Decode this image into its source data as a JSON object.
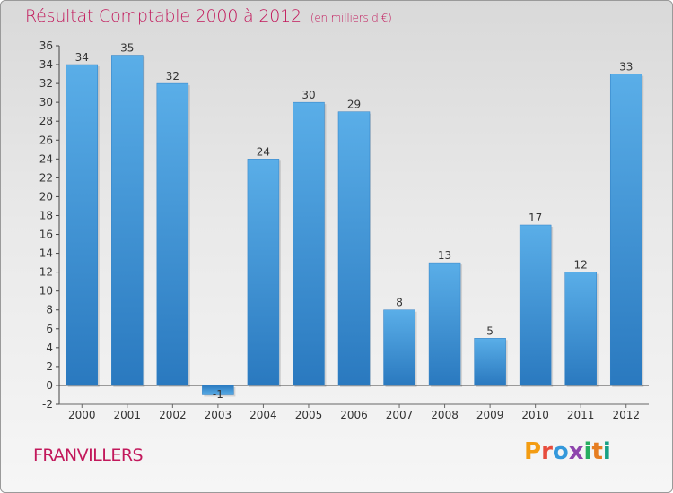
{
  "header": {
    "title": "Résultat Comptable 2000 à 2012",
    "subtitle": "(en milliers d'€)"
  },
  "commune": "FRANVILLERS",
  "logo": {
    "letters": [
      "P",
      "r",
      "o",
      "x",
      "i",
      "t",
      "i"
    ],
    "colors": [
      "#f39c12",
      "#e74c3c",
      "#3498db",
      "#8e44ad",
      "#27ae60",
      "#e67e22",
      "#16a085"
    ]
  },
  "chart_data": {
    "type": "bar",
    "title": "Résultat Comptable 2000 à 2012",
    "subtitle": "(en milliers d'€)",
    "categories": [
      "2000",
      "2001",
      "2002",
      "2003",
      "2004",
      "2005",
      "2006",
      "2007",
      "2008",
      "2009",
      "2010",
      "2011",
      "2012"
    ],
    "values": [
      34,
      35,
      32,
      -1,
      24,
      30,
      29,
      8,
      13,
      5,
      17,
      12,
      33
    ],
    "ylim": [
      -2,
      36
    ],
    "yticks": [
      -2,
      0,
      2,
      4,
      6,
      8,
      10,
      12,
      14,
      16,
      18,
      20,
      22,
      24,
      26,
      28,
      30,
      32,
      34,
      36
    ],
    "xlabel": "",
    "ylabel": "",
    "grid": false,
    "bar_color": "#3a8fd6"
  }
}
